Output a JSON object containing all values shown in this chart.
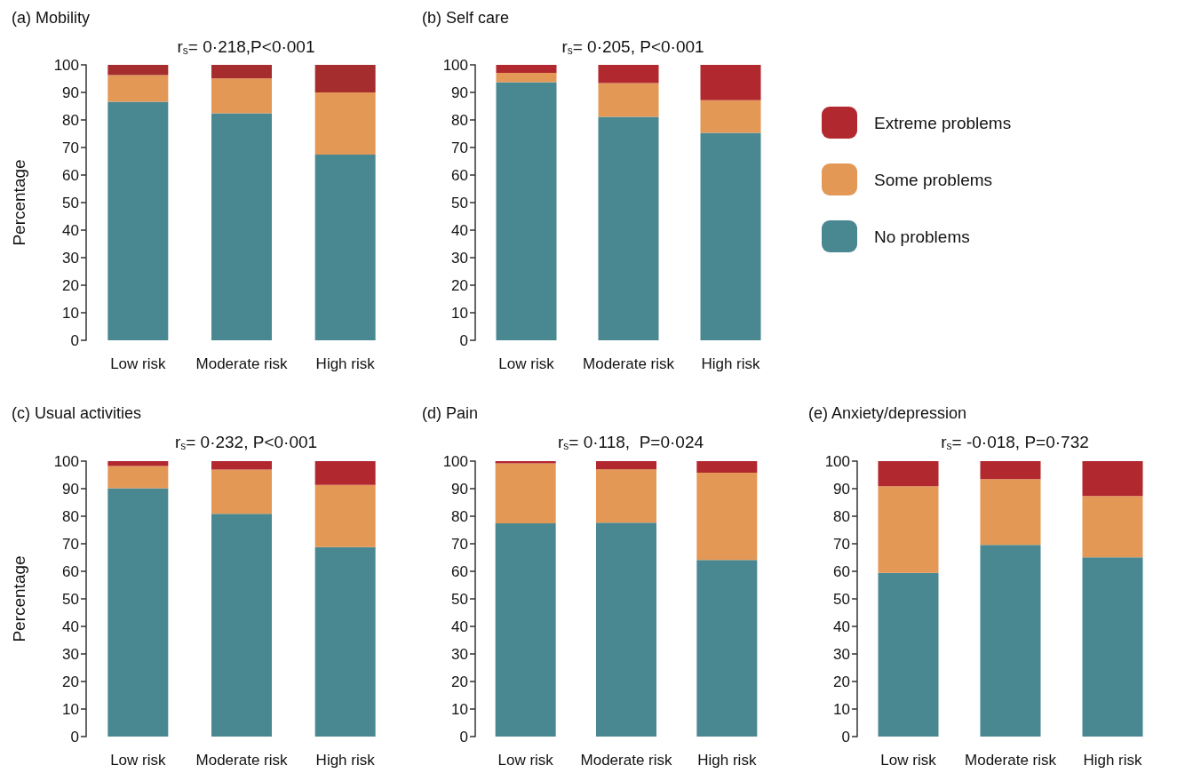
{
  "chart_data": [
    {
      "type": "bar",
      "title": "(a) Mobility",
      "subtitle": "r$_{s}$= 0·218,P<0·001",
      "ylabel": "Percentage",
      "categories": [
        "Low risk",
        "Moderate risk",
        "High risk"
      ],
      "stacked": true,
      "ylim": [
        0,
        100
      ],
      "yticks": [
        0,
        10,
        20,
        30,
        40,
        50,
        60,
        70,
        80,
        90,
        100
      ],
      "series": [
        {
          "color": "#4a8891",
          "values": [
            86.6,
            82.4,
            67.4
          ]
        },
        {
          "color": "#e49856",
          "values": [
            9.7,
            12.7,
            22.6
          ]
        },
        {
          "color": "#a52d2d",
          "values": [
            3.7,
            4.9,
            10.0
          ]
        }
      ]
    },
    {
      "type": "bar",
      "title": "(b) Self care",
      "subtitle": "r$_{s}$= 0·205, P<0·001",
      "categories": [
        "Low risk",
        "Moderate risk",
        "High risk"
      ],
      "stacked": true,
      "legend": "right",
      "ylim": [
        0,
        100
      ],
      "yticks": [
        0,
        10,
        20,
        30,
        40,
        50,
        60,
        70,
        80,
        90,
        100
      ],
      "series": [
        {
          "name": "No problems",
          "color": "#4a8891",
          "values": [
            93.7,
            81.1,
            75.3
          ]
        },
        {
          "name": "Some problems",
          "color": "#e49856",
          "values": [
            3.4,
            12.3,
            11.9
          ]
        },
        {
          "name": "Extreme problems",
          "color": "#b2282f",
          "values": [
            2.9,
            6.6,
            12.8
          ]
        }
      ]
    },
    {
      "type": "bar",
      "title": "(c) Usual activities",
      "subtitle": "r$_{s}$= 0·232, P<0·001",
      "ylabel": "Percentage",
      "categories": [
        "Low risk",
        "Moderate risk",
        "High risk"
      ],
      "stacked": true,
      "ylim": [
        0,
        100
      ],
      "yticks": [
        0,
        10,
        20,
        30,
        40,
        50,
        60,
        70,
        80,
        90,
        100
      ],
      "series": [
        {
          "color": "#4a8891",
          "values": [
            90.2,
            80.9,
            68.8
          ]
        },
        {
          "color": "#e49856",
          "values": [
            8.0,
            16.0,
            22.6
          ]
        },
        {
          "color": "#b2282f",
          "values": [
            1.8,
            3.1,
            8.6
          ]
        }
      ]
    },
    {
      "type": "bar",
      "title": "(d) Pain",
      "subtitle": "r$_{s}$= 0·118,  P=0·024",
      "categories": [
        "Low risk",
        "Moderate risk",
        "High risk"
      ],
      "stacked": true,
      "ylim": [
        0,
        100
      ],
      "yticks": [
        0,
        10,
        20,
        30,
        40,
        50,
        60,
        70,
        80,
        90,
        100
      ],
      "series": [
        {
          "color": "#4a8891",
          "values": [
            77.4,
            77.7,
            64.1
          ]
        },
        {
          "color": "#e49856",
          "values": [
            21.8,
            19.3,
            31.7
          ]
        },
        {
          "color": "#b2282f",
          "values": [
            0.8,
            3.0,
            4.2
          ]
        }
      ]
    },
    {
      "type": "bar",
      "title": "(e) Anxiety/depression",
      "subtitle": "r$_{s}$= -0·018, P=0·732",
      "categories": [
        "Low risk",
        "Moderate risk",
        "High risk"
      ],
      "stacked": true,
      "ylim": [
        0,
        100
      ],
      "yticks": [
        0,
        10,
        20,
        30,
        40,
        50,
        60,
        70,
        80,
        90,
        100
      ],
      "series": [
        {
          "color": "#4a8891",
          "values": [
            59.4,
            69.6,
            65.1
          ]
        },
        {
          "color": "#e49856",
          "values": [
            31.5,
            23.9,
            22.2
          ]
        },
        {
          "color": "#b2282f",
          "values": [
            9.1,
            6.5,
            12.7
          ]
        }
      ]
    }
  ]
}
